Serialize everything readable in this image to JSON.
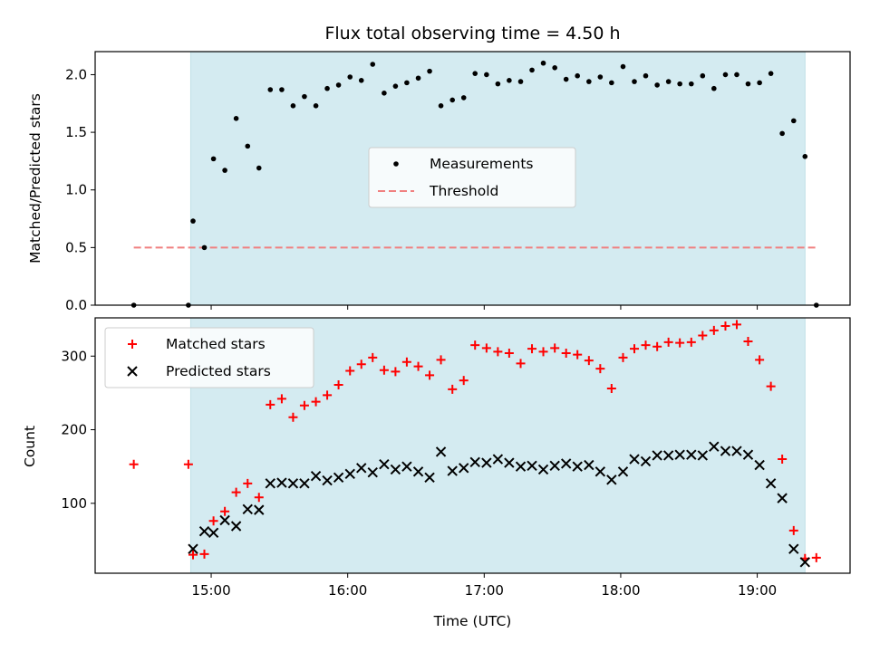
{
  "chart_data": [
    {
      "type": "scatter",
      "title": "Flux total observing time = 4.50 h",
      "ylabel": "Matched/Predicted stars",
      "xlabel": "",
      "ylim": [
        0,
        2.2
      ],
      "yticks": [
        0.0,
        0.5,
        1.0,
        1.5,
        2.0
      ],
      "ytick_labels": [
        "0.0",
        "0.5",
        "1.0",
        "1.5",
        "2.0"
      ],
      "xlim": [
        14.15,
        19.68
      ],
      "xticks": [
        15,
        16,
        17,
        18,
        19
      ],
      "shaded_region": [
        14.85,
        19.35
      ],
      "colors": {
        "shade": "#d4ebf1",
        "points": "#000000",
        "threshold": "#f08080"
      },
      "legend": {
        "placement": "center",
        "entries": [
          "Measurements",
          "Threshold"
        ]
      },
      "series": [
        {
          "name": "Measurements",
          "x": [
            14.433,
            14.833,
            14.867,
            14.95,
            15.017,
            15.1,
            15.183,
            15.267,
            15.35,
            15.433,
            15.517,
            15.6,
            15.683,
            15.767,
            15.85,
            15.933,
            16.017,
            16.1,
            16.183,
            16.267,
            16.35,
            16.433,
            16.517,
            16.6,
            16.683,
            16.767,
            16.85,
            16.933,
            17.017,
            17.1,
            17.183,
            17.267,
            17.35,
            17.433,
            17.517,
            17.6,
            17.683,
            17.767,
            17.85,
            17.933,
            18.017,
            18.1,
            18.183,
            18.267,
            18.35,
            18.433,
            18.517,
            18.6,
            18.683,
            18.767,
            18.85,
            18.933,
            19.017,
            19.1,
            19.183,
            19.267,
            19.35,
            19.433
          ],
          "values": [
            0.0,
            0.0,
            0.73,
            0.5,
            1.27,
            1.17,
            1.62,
            1.38,
            1.19,
            1.87,
            1.87,
            1.73,
            1.81,
            1.73,
            1.88,
            1.91,
            1.98,
            1.95,
            2.09,
            1.84,
            1.9,
            1.93,
            1.97,
            2.03,
            1.73,
            1.78,
            1.8,
            2.01,
            2.0,
            1.92,
            1.95,
            1.94,
            2.04,
            2.1,
            2.06,
            1.96,
            1.99,
            1.94,
            1.98,
            1.93,
            2.07,
            1.94,
            1.99,
            1.91,
            1.94,
            1.92,
            1.92,
            1.99,
            1.88,
            2.0,
            2.0,
            1.92,
            1.93,
            2.01,
            1.49,
            1.6,
            1.29,
            0.0
          ]
        },
        {
          "name": "Threshold",
          "x": [
            14.433,
            19.433
          ],
          "values": [
            0.5,
            0.5
          ]
        }
      ]
    },
    {
      "type": "scatter",
      "title": "",
      "xlabel": "Time (UTC)",
      "ylabel": "Count",
      "ylim": [
        5,
        352
      ],
      "yticks": [
        100,
        200,
        300
      ],
      "ytick_labels": [
        "100",
        "200",
        "300"
      ],
      "xlim": [
        14.15,
        19.68
      ],
      "xticks": [
        15,
        16,
        17,
        18,
        19
      ],
      "xtick_labels": [
        "15:00",
        "16:00",
        "17:00",
        "18:00",
        "19:00"
      ],
      "shaded_region": [
        14.85,
        19.35
      ],
      "colors": {
        "shade": "#d4ebf1",
        "matched": "#ff0000",
        "predicted": "#000000"
      },
      "legend": {
        "placement": "top-left",
        "entries": [
          "Matched stars",
          "Predicted stars"
        ]
      },
      "series": [
        {
          "name": "Matched stars",
          "marker": "plus",
          "x": [
            14.433,
            14.833,
            14.867,
            14.95,
            15.017,
            15.1,
            15.183,
            15.267,
            15.35,
            15.433,
            15.517,
            15.6,
            15.683,
            15.767,
            15.85,
            15.933,
            16.017,
            16.1,
            16.183,
            16.267,
            16.35,
            16.433,
            16.517,
            16.6,
            16.683,
            16.767,
            16.85,
            16.933,
            17.017,
            17.1,
            17.183,
            17.267,
            17.35,
            17.433,
            17.517,
            17.6,
            17.683,
            17.767,
            17.85,
            17.933,
            18.017,
            18.1,
            18.183,
            18.267,
            18.35,
            18.433,
            18.517,
            18.6,
            18.683,
            18.767,
            18.85,
            18.933,
            19.017,
            19.1,
            19.183,
            19.267,
            19.35,
            19.433
          ],
          "values": [
            153,
            153,
            30,
            31,
            76,
            89,
            115,
            127,
            108,
            234,
            242,
            217,
            233,
            238,
            247,
            261,
            280,
            289,
            298,
            281,
            279,
            292,
            286,
            274,
            295,
            255,
            267,
            315,
            311,
            306,
            304,
            290,
            310,
            306,
            311,
            304,
            302,
            294,
            283,
            256,
            298,
            310,
            315,
            313,
            319,
            318,
            319,
            328,
            335,
            341,
            343,
            320,
            295,
            259,
            160,
            63,
            25,
            26
          ]
        },
        {
          "name": "Predicted stars",
          "marker": "x",
          "x": [
            14.867,
            14.95,
            15.017,
            15.1,
            15.183,
            15.267,
            15.35,
            15.433,
            15.517,
            15.6,
            15.683,
            15.767,
            15.85,
            15.933,
            16.017,
            16.1,
            16.183,
            16.267,
            16.35,
            16.433,
            16.517,
            16.6,
            16.683,
            16.767,
            16.85,
            16.933,
            17.017,
            17.1,
            17.183,
            17.267,
            17.35,
            17.433,
            17.517,
            17.6,
            17.683,
            17.767,
            17.85,
            17.933,
            18.017,
            18.1,
            18.183,
            18.267,
            18.35,
            18.433,
            18.517,
            18.6,
            18.683,
            18.767,
            18.85,
            18.933,
            19.017,
            19.1,
            19.183,
            19.267,
            19.35
          ],
          "values": [
            38,
            62,
            60,
            77,
            69,
            92,
            91,
            127,
            128,
            127,
            127,
            137,
            131,
            135,
            140,
            148,
            142,
            153,
            146,
            150,
            143,
            135,
            170,
            144,
            148,
            156,
            155,
            160,
            155,
            150,
            151,
            146,
            151,
            154,
            150,
            152,
            143,
            132,
            143,
            160,
            157,
            165,
            165,
            166,
            166,
            165,
            177,
            171,
            171,
            166,
            152,
            127,
            107,
            38,
            20
          ]
        }
      ]
    }
  ]
}
